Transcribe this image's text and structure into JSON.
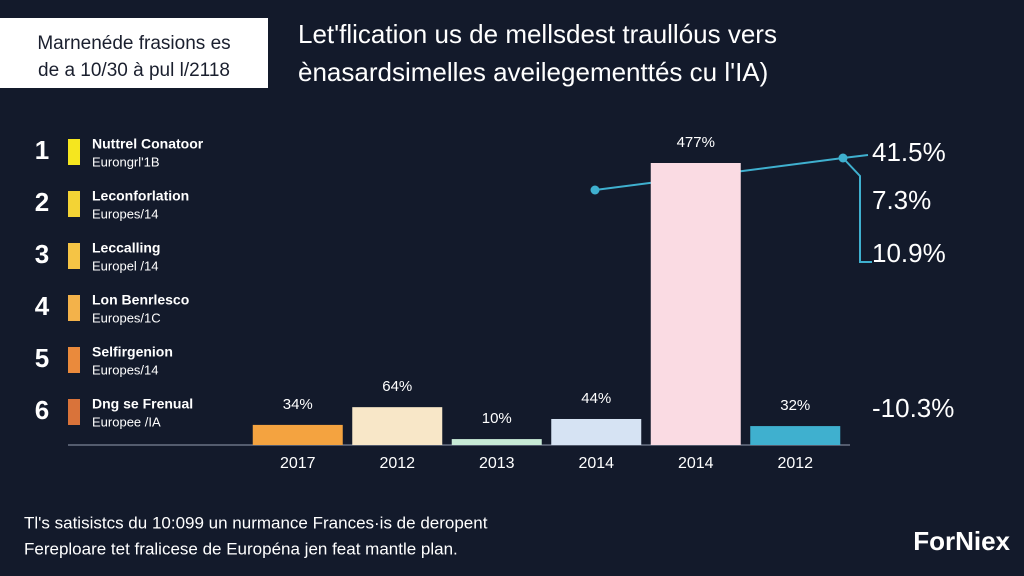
{
  "header": {
    "lines": [
      "Marnenéde frasions es",
      "de a 10/30 à pul l/2118"
    ]
  },
  "title": {
    "lines": [
      "Let'flication us de mellsdest traullóus vers",
      "ènasardsimelles aveilegementtés cu l'IA)"
    ]
  },
  "ranking": [
    {
      "rank": "1",
      "name": "Nuttrel Conatoor",
      "sub": "Eurongrl'1B",
      "color": "#f5e61f"
    },
    {
      "rank": "2",
      "name": "Leconforlation",
      "sub": "Europes/14",
      "color": "#f3d335"
    },
    {
      "rank": "3",
      "name": "Leccalling",
      "sub": "Europel /14",
      "color": "#f5c445"
    },
    {
      "rank": "4",
      "name": "Lon Benrlesco",
      "sub": "Europes/1C",
      "color": "#f3b24a"
    },
    {
      "rank": "5",
      "name": "Selfirgenion",
      "sub": "Europes/14",
      "color": "#ea8a3c"
    },
    {
      "rank": "6",
      "name": "Dng se Frenual",
      "sub": "Europee /IA",
      "color": "#d9733a"
    }
  ],
  "chart_data": {
    "type": "bar",
    "categories": [
      "2017",
      "2012",
      "2013",
      "2014",
      "2014",
      "2012"
    ],
    "values": [
      34,
      64,
      10,
      44,
      477,
      32
    ],
    "value_labels": [
      "34%",
      "64%",
      "10%",
      "44%",
      "477%",
      "32%"
    ],
    "colors": [
      "#f4a340",
      "#f8e7c8",
      "#c8ead6",
      "#d6e3f3",
      "#fadbe3",
      "#3fb0cf"
    ],
    "annotations": [
      "41.5%",
      "7.3%",
      "10.9%",
      "-10.3%"
    ]
  },
  "footer": {
    "lines": [
      "Tl's satisistcs du 10:099 un nurmance Frances·is de deropent",
      "Fereploare tet fralicese de Européna jen feat mantle plan."
    ]
  },
  "brand": "ForNiex"
}
